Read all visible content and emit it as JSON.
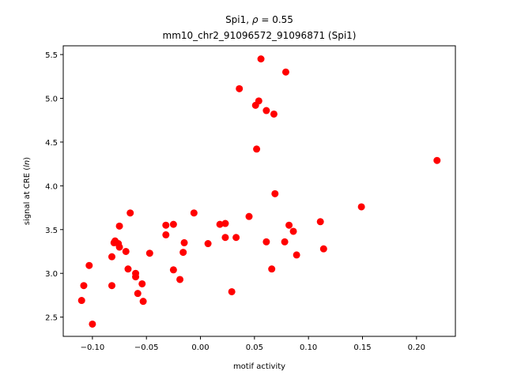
{
  "chart_data": {
    "type": "scatter",
    "title_line1_prefix": "Spi1, ",
    "title_rho_symbol": "ρ",
    "title_rho_eq": " = 0.55",
    "title_line2": "mm10_chr2_91096572_91096871 (Spi1)",
    "xlabel": "motif activity",
    "ylabel_prefix": "signal at CRE (",
    "ylabel_var": "ln",
    "ylabel_suffix": ")",
    "xlim": [
      -0.127,
      0.236
    ],
    "ylim": [
      2.28,
      5.6
    ],
    "xticks": [
      -0.1,
      -0.05,
      0.0,
      0.05,
      0.1,
      0.15,
      0.2
    ],
    "xtick_labels": [
      "−0.10",
      "−0.05",
      "0.00",
      "0.05",
      "0.10",
      "0.15",
      "0.20"
    ],
    "yticks": [
      2.5,
      3.0,
      3.5,
      4.0,
      4.5,
      5.0,
      5.5
    ],
    "ytick_labels": [
      "2.5",
      "3.0",
      "3.5",
      "4.0",
      "4.5",
      "5.0",
      "5.5"
    ],
    "point_color": "#ff0000",
    "points": [
      [
        -0.11,
        2.69
      ],
      [
        -0.108,
        2.86
      ],
      [
        -0.103,
        3.09
      ],
      [
        -0.1,
        2.42
      ],
      [
        -0.082,
        3.19
      ],
      [
        -0.082,
        2.86
      ],
      [
        -0.08,
        3.35
      ],
      [
        -0.079,
        3.37
      ],
      [
        -0.076,
        3.34
      ],
      [
        -0.075,
        3.3
      ],
      [
        -0.075,
        3.54
      ],
      [
        -0.069,
        3.25
      ],
      [
        -0.067,
        3.05
      ],
      [
        -0.065,
        3.69
      ],
      [
        -0.06,
        2.96
      ],
      [
        -0.06,
        3.0
      ],
      [
        -0.058,
        2.77
      ],
      [
        -0.054,
        2.88
      ],
      [
        -0.053,
        2.68
      ],
      [
        -0.047,
        3.23
      ],
      [
        -0.032,
        3.55
      ],
      [
        -0.032,
        3.44
      ],
      [
        -0.025,
        3.56
      ],
      [
        -0.025,
        3.04
      ],
      [
        -0.019,
        2.93
      ],
      [
        -0.016,
        3.24
      ],
      [
        -0.015,
        3.35
      ],
      [
        -0.006,
        3.69
      ],
      [
        0.007,
        3.34
      ],
      [
        0.018,
        3.56
      ],
      [
        0.023,
        3.57
      ],
      [
        0.023,
        3.41
      ],
      [
        0.029,
        2.79
      ],
      [
        0.033,
        3.41
      ],
      [
        0.036,
        5.11
      ],
      [
        0.045,
        3.65
      ],
      [
        0.051,
        4.92
      ],
      [
        0.052,
        4.42
      ],
      [
        0.054,
        4.97
      ],
      [
        0.056,
        5.45
      ],
      [
        0.061,
        3.36
      ],
      [
        0.061,
        4.86
      ],
      [
        0.066,
        3.05
      ],
      [
        0.068,
        4.82
      ],
      [
        0.069,
        3.91
      ],
      [
        0.078,
        3.36
      ],
      [
        0.079,
        5.3
      ],
      [
        0.082,
        3.55
      ],
      [
        0.086,
        3.48
      ],
      [
        0.089,
        3.21
      ],
      [
        0.111,
        3.59
      ],
      [
        0.114,
        3.28
      ],
      [
        0.149,
        3.76
      ],
      [
        0.219,
        4.29
      ]
    ]
  }
}
